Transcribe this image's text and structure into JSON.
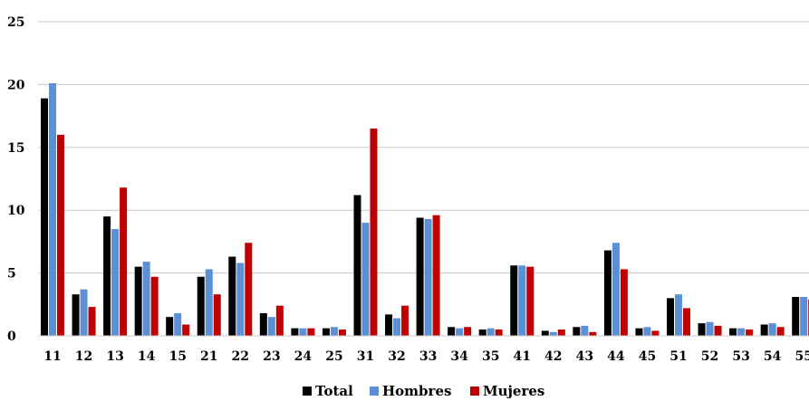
{
  "chart_data": {
    "type": "bar",
    "categories": [
      "11",
      "12",
      "13",
      "14",
      "15",
      "21",
      "22",
      "23",
      "24",
      "25",
      "31",
      "32",
      "33",
      "34",
      "35",
      "41",
      "42",
      "43",
      "44",
      "45",
      "51",
      "52",
      "53",
      "54",
      "55"
    ],
    "series": [
      {
        "name": "Total",
        "color": "#000000",
        "values": [
          18.9,
          3.3,
          9.5,
          5.5,
          1.5,
          4.7,
          6.3,
          1.8,
          0.6,
          0.6,
          11.2,
          1.7,
          9.4,
          0.7,
          0.5,
          5.6,
          0.4,
          0.7,
          6.8,
          0.6,
          3.0,
          1.0,
          0.6,
          0.9,
          3.1
        ]
      },
      {
        "name": "Hombres",
        "color": "#5b8fd6",
        "values": [
          20.1,
          3.7,
          8.5,
          5.9,
          1.8,
          5.3,
          5.8,
          1.5,
          0.6,
          0.7,
          9.0,
          1.4,
          9.3,
          0.6,
          0.6,
          5.6,
          0.3,
          0.8,
          7.4,
          0.7,
          3.3,
          1.1,
          0.6,
          1.0,
          3.1
        ]
      },
      {
        "name": "Mujeres",
        "color": "#c00000",
        "values": [
          16.0,
          2.3,
          11.8,
          4.7,
          0.9,
          3.3,
          7.4,
          2.4,
          0.6,
          0.5,
          16.5,
          2.4,
          9.6,
          0.7,
          0.5,
          5.5,
          0.5,
          0.3,
          5.3,
          0.4,
          2.2,
          0.8,
          0.5,
          0.7,
          2.9
        ]
      }
    ],
    "yticks": [
      "0",
      "5",
      "10",
      "15",
      "20",
      "25"
    ],
    "ylim": [
      0,
      25
    ],
    "grid": true,
    "legend_position": "bottom"
  }
}
